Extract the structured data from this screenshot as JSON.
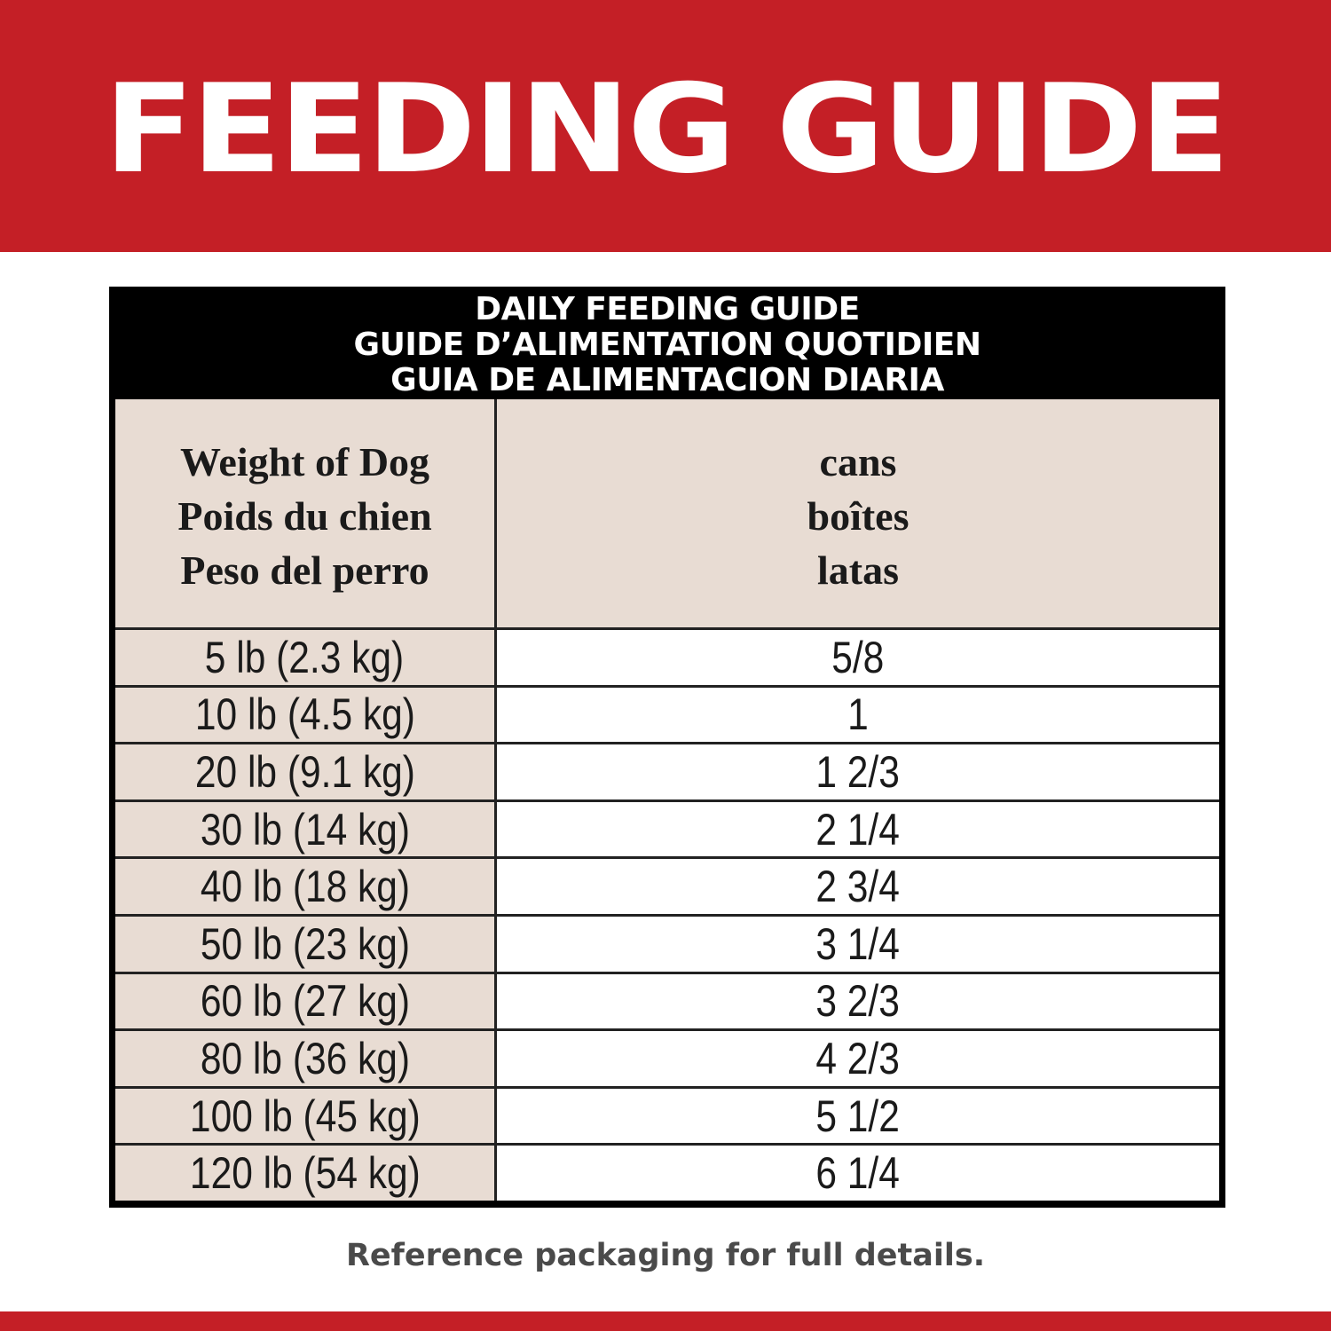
{
  "banner": {
    "title": "FEEDING GUIDE"
  },
  "table": {
    "title_lines": [
      "DAILY FEEDING GUIDE",
      "GUIDE D’ALIMENTATION QUOTIDIEN",
      "GUIA DE ALIMENTACION DIARIA"
    ],
    "weight_header": [
      "Weight of Dog",
      "Poids du chien",
      "Peso del perro"
    ],
    "amount_header": [
      "cans",
      "boîtes",
      "latas"
    ],
    "rows": [
      {
        "weight": "5 lb (2.3 kg)",
        "amount": "5/8"
      },
      {
        "weight": "10 lb (4.5 kg)",
        "amount": "1"
      },
      {
        "weight": "20 lb (9.1 kg)",
        "amount": "1 2/3"
      },
      {
        "weight": "30 lb (14 kg)",
        "amount": "2 1/4"
      },
      {
        "weight": "40 lb (18 kg)",
        "amount": "2 3/4"
      },
      {
        "weight": "50 lb (23 kg)",
        "amount": "3 1/4"
      },
      {
        "weight": "60 lb (27 kg)",
        "amount": "3 2/3"
      },
      {
        "weight": "80 lb (36 kg)",
        "amount": "4 2/3"
      },
      {
        "weight": "100 lb (45 kg)",
        "amount": "5 1/2"
      },
      {
        "weight": "120 lb (54 kg)",
        "amount": "6 1/4"
      }
    ]
  },
  "footer": {
    "note": "Reference packaging for full details."
  },
  "colors": {
    "brand_red": "#c41f26",
    "header_beige": "#e8dcd3",
    "table_border": "#000000"
  }
}
